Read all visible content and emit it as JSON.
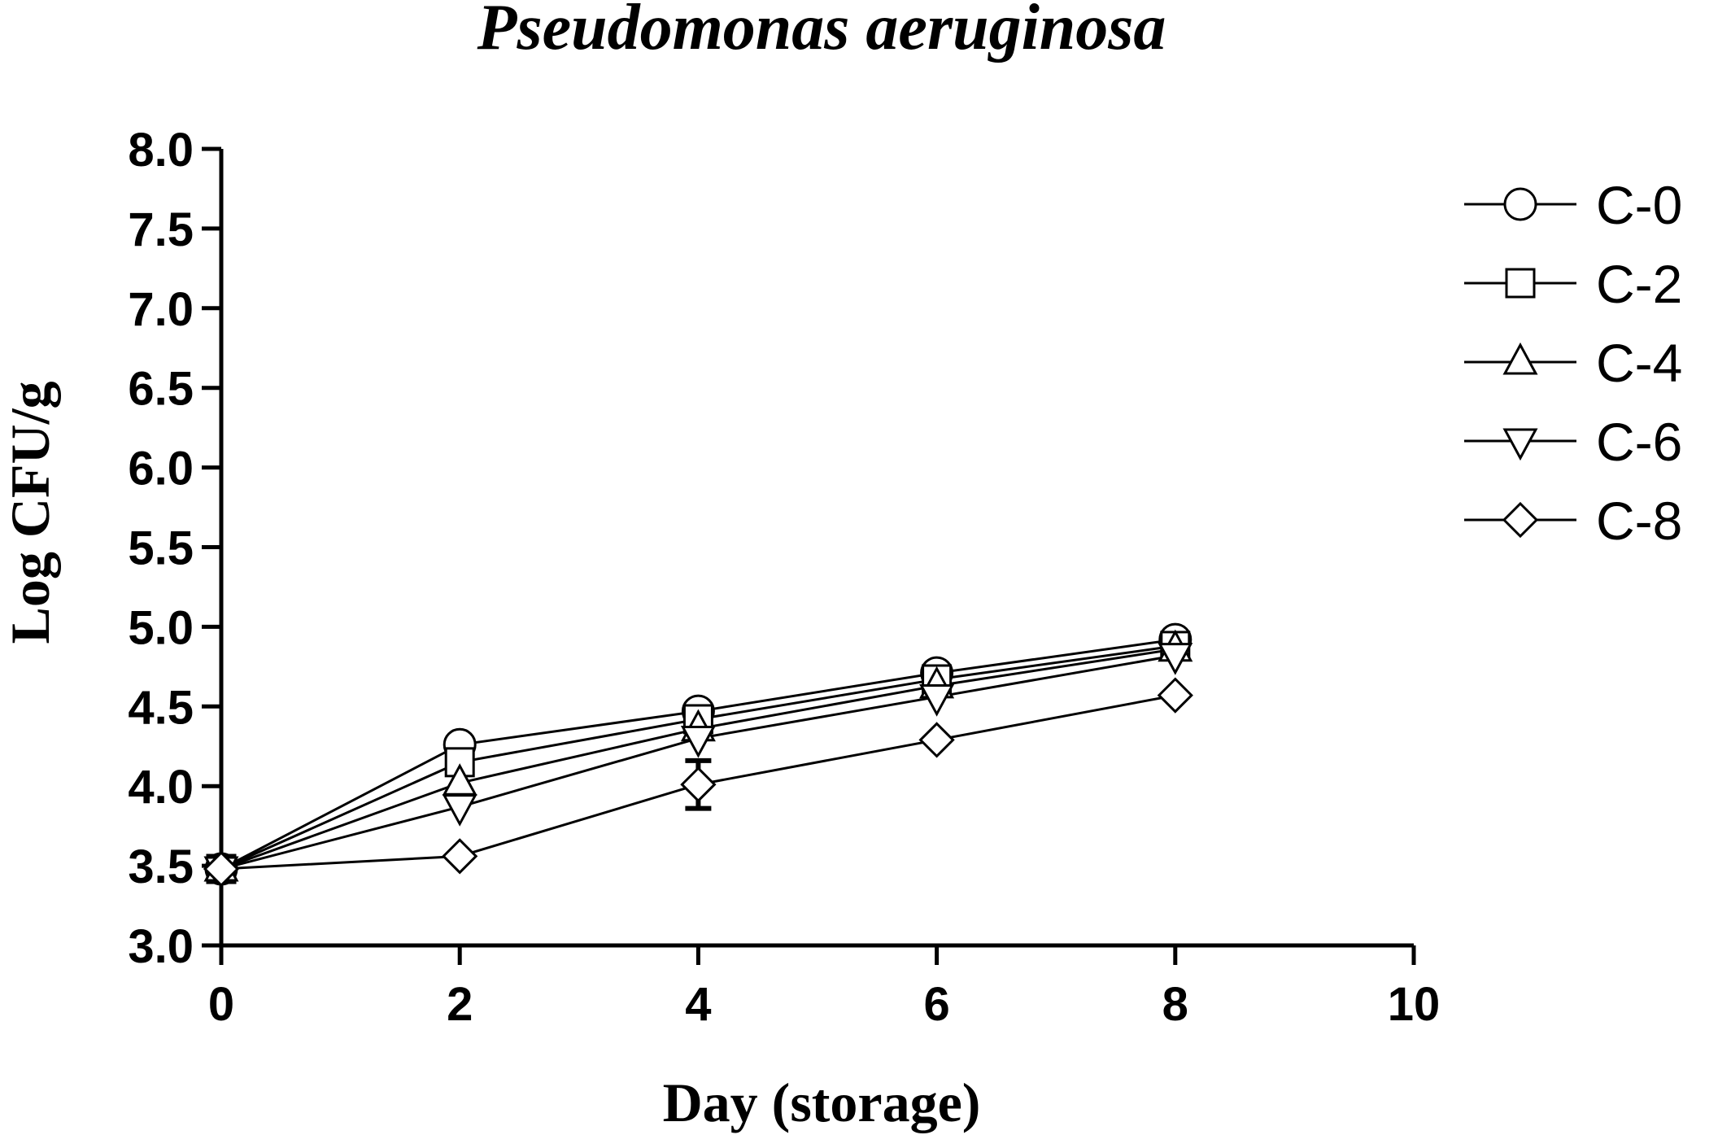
{
  "chart_data": {
    "type": "line",
    "title": "Pseudomonas aeruginosa",
    "xlabel": "Day (storage)",
    "ylabel": "Log CFU/g",
    "xlim": [
      0,
      10
    ],
    "ylim": [
      3.0,
      8.0
    ],
    "xticks": [
      "0",
      "2",
      "4",
      "6",
      "8",
      "10"
    ],
    "yticks": [
      "3.0",
      "3.5",
      "4.0",
      "4.5",
      "5.0",
      "5.5",
      "6.0",
      "6.5",
      "7.0",
      "7.5",
      "8.0"
    ],
    "grid": false,
    "legend_position": "right",
    "x": [
      0,
      2,
      4,
      6,
      8
    ],
    "series": [
      {
        "name": "C-0",
        "marker": "circle",
        "values": [
          3.48,
          4.26,
          4.47,
          4.71,
          4.92
        ]
      },
      {
        "name": "C-2",
        "marker": "square",
        "values": [
          3.48,
          4.15,
          4.42,
          4.67,
          4.88
        ]
      },
      {
        "name": "C-4",
        "marker": "triangle-up",
        "values": [
          3.48,
          4.02,
          4.36,
          4.63,
          4.86
        ]
      },
      {
        "name": "C-6",
        "marker": "triangle-down",
        "values": [
          3.48,
          3.87,
          4.3,
          4.56,
          4.82
        ]
      },
      {
        "name": "C-8",
        "marker": "diamond",
        "values": [
          3.48,
          3.56,
          4.01,
          4.29,
          4.57
        ]
      }
    ],
    "error_bars": [
      {
        "series": "C-8",
        "x": 4,
        "low": 3.86,
        "high": 4.16
      }
    ]
  }
}
